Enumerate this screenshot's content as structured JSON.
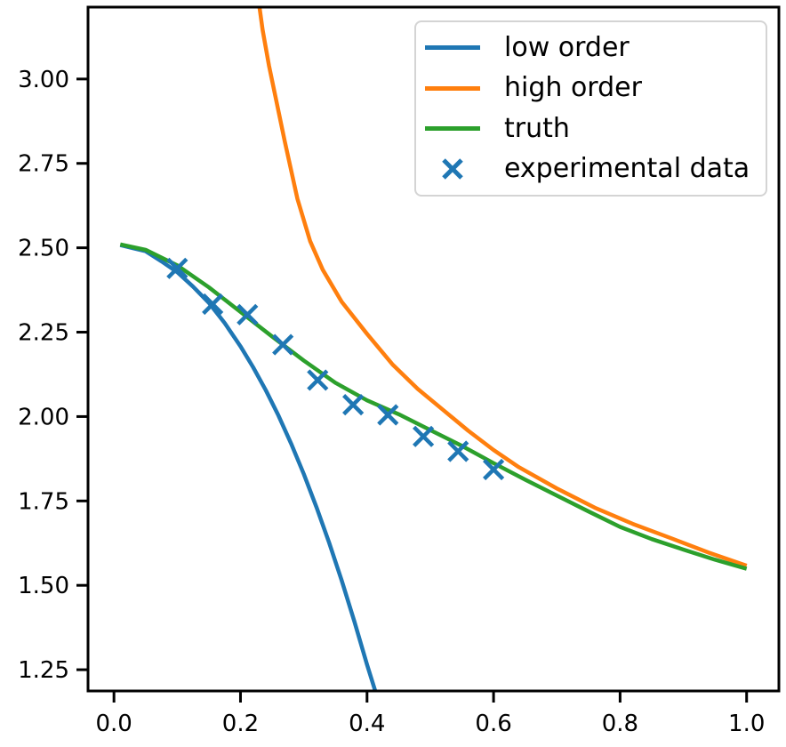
{
  "chart_data": {
    "type": "line",
    "title": "",
    "xlabel": "",
    "ylabel": "",
    "xlim": [
      -0.041,
      1.051
    ],
    "ylim": [
      1.187,
      3.213
    ],
    "grid": false,
    "xticks": [
      0.0,
      0.2,
      0.4,
      0.6,
      0.8,
      1.0
    ],
    "xtick_labels": [
      "0.0",
      "0.2",
      "0.4",
      "0.6",
      "0.8",
      "1.0"
    ],
    "yticks": [
      1.25,
      1.5,
      1.75,
      2.0,
      2.25,
      2.5,
      2.75,
      3.0
    ],
    "ytick_labels": [
      "1.25",
      "1.50",
      "1.75",
      "2.00",
      "2.25",
      "2.50",
      "2.75",
      "3.00"
    ],
    "axes_color": "#000000",
    "legend": {
      "position": "upper right",
      "entries": [
        {
          "label": "low order",
          "color": "#1f77b4",
          "type": "line"
        },
        {
          "label": "high order",
          "color": "#ff7f0e",
          "type": "line"
        },
        {
          "label": "truth",
          "color": "#2ca02c",
          "type": "line"
        },
        {
          "label": "experimental data",
          "color": "#1f77b4",
          "type": "marker-x"
        }
      ]
    },
    "series": [
      {
        "name": "low order",
        "color": "#1f77b4",
        "x": [
          0.01,
          0.03,
          0.05,
          0.075,
          0.1,
          0.125,
          0.15,
          0.175,
          0.2,
          0.22,
          0.24,
          0.26,
          0.28,
          0.3,
          0.32,
          0.34,
          0.36,
          0.38,
          0.4,
          0.413
        ],
        "y": [
          2.508,
          2.499,
          2.49,
          2.46,
          2.428,
          2.385,
          2.337,
          2.277,
          2.208,
          2.146,
          2.078,
          2.003,
          1.92,
          1.83,
          1.732,
          1.627,
          1.514,
          1.393,
          1.265,
          1.187
        ]
      },
      {
        "name": "high order",
        "color": "#ff7f0e",
        "x": [
          0.23,
          0.235,
          0.245,
          0.255,
          0.27,
          0.29,
          0.31,
          0.33,
          0.36,
          0.4,
          0.44,
          0.48,
          0.52,
          0.56,
          0.6,
          0.64,
          0.7,
          0.76,
          0.82,
          0.88,
          0.94,
          1.0
        ],
        "y": [
          3.213,
          3.145,
          3.04,
          2.95,
          2.815,
          2.645,
          2.52,
          2.435,
          2.34,
          2.245,
          2.155,
          2.082,
          2.02,
          1.958,
          1.901,
          1.85,
          1.787,
          1.73,
          1.682,
          1.64,
          1.597,
          1.558
        ]
      },
      {
        "name": "truth",
        "color": "#2ca02c",
        "x": [
          0.01,
          0.05,
          0.1,
          0.15,
          0.2,
          0.25,
          0.3,
          0.35,
          0.4,
          0.45,
          0.5,
          0.55,
          0.6,
          0.65,
          0.7,
          0.75,
          0.8,
          0.85,
          0.9,
          0.95,
          1.0
        ],
        "y": [
          2.51,
          2.494,
          2.448,
          2.383,
          2.31,
          2.237,
          2.166,
          2.1,
          2.048,
          2.007,
          1.96,
          1.913,
          1.862,
          1.813,
          1.766,
          1.719,
          1.673,
          1.637,
          1.606,
          1.576,
          1.549
        ]
      }
    ],
    "scatter": {
      "name": "experimental data",
      "color": "#1f77b4",
      "marker": "x",
      "points": [
        [
          0.1,
          2.439
        ],
        [
          0.156,
          2.333
        ],
        [
          0.211,
          2.302
        ],
        [
          0.267,
          2.213
        ],
        [
          0.322,
          2.108
        ],
        [
          0.378,
          2.035
        ],
        [
          0.433,
          2.005
        ],
        [
          0.489,
          1.941
        ],
        [
          0.544,
          1.897
        ],
        [
          0.6,
          1.843
        ]
      ]
    }
  },
  "figure": {
    "background": "#ffffff"
  }
}
